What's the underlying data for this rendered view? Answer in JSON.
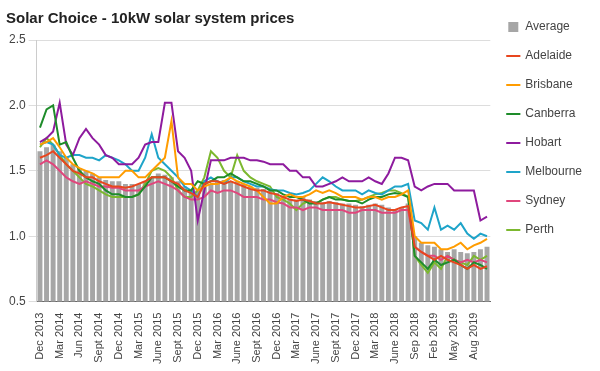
{
  "chart_data": {
    "type": "line",
    "title": "Solar Choice - 10kW solar system prices",
    "categories": [
      "Dec 2013",
      null,
      null,
      "Mar 2014",
      null,
      null,
      "Jun 2014",
      null,
      null,
      "Sept 2014",
      null,
      null,
      "Dec 2014",
      null,
      null,
      "Mar 2015",
      null,
      null,
      "June 2015",
      null,
      null,
      "Sept 2015",
      null,
      null,
      "Dec 2015",
      null,
      null,
      "Mar 2016",
      null,
      null,
      "June 2016",
      null,
      null,
      "Sept 2016",
      null,
      null,
      "Dec 2016",
      null,
      null,
      "Mar 2017",
      null,
      null,
      "June 2017",
      null,
      null,
      "Sept 2017",
      null,
      null,
      "Dec 2017",
      null,
      null,
      "Mar 2018",
      null,
      null,
      "June 2018",
      null,
      null,
      "Sep 2018",
      null,
      null,
      "Feb 2019",
      null,
      null,
      "May 2019",
      null,
      null,
      "Aug 2019",
      null,
      null
    ],
    "series": [
      {
        "name": "Average",
        "type": "bar",
        "color": "#a6a6a6",
        "values": [
          1.65,
          1.68,
          1.7,
          1.65,
          1.6,
          1.55,
          1.52,
          1.5,
          1.48,
          1.45,
          1.43,
          1.42,
          1.42,
          1.4,
          1.4,
          1.4,
          1.42,
          1.45,
          1.48,
          1.47,
          1.45,
          1.42,
          1.38,
          1.36,
          1.35,
          1.38,
          1.4,
          1.42,
          1.43,
          1.42,
          1.42,
          1.4,
          1.38,
          1.37,
          1.36,
          1.35,
          1.33,
          1.3,
          1.28,
          1.28,
          1.3,
          1.28,
          1.27,
          1.26,
          1.27,
          1.26,
          1.25,
          1.25,
          1.24,
          1.23,
          1.24,
          1.25,
          1.24,
          1.22,
          1.2,
          1.22,
          1.25,
          1.0,
          0.95,
          0.93,
          0.92,
          0.9,
          0.88,
          0.9,
          0.88,
          0.87,
          0.88,
          0.9,
          0.92
        ]
      },
      {
        "name": "Adelaide",
        "type": "line",
        "color": "#e8461e",
        "values": [
          1.6,
          1.62,
          1.65,
          1.6,
          1.55,
          1.5,
          1.48,
          1.45,
          1.45,
          1.42,
          1.4,
          1.38,
          1.38,
          1.37,
          1.38,
          1.4,
          1.42,
          1.45,
          1.45,
          1.45,
          1.42,
          1.4,
          1.35,
          1.33,
          1.3,
          1.4,
          1.42,
          1.42,
          1.4,
          1.42,
          1.4,
          1.38,
          1.36,
          1.35,
          1.35,
          1.33,
          1.32,
          1.3,
          1.28,
          1.27,
          1.28,
          1.27,
          1.25,
          1.25,
          1.26,
          1.25,
          1.24,
          1.23,
          1.22,
          1.22,
          1.23,
          1.24,
          1.22,
          1.2,
          1.2,
          1.22,
          1.23,
          0.92,
          0.88,
          0.85,
          0.82,
          0.85,
          0.82,
          0.8,
          0.78,
          0.75,
          0.78,
          0.75,
          0.77
        ]
      },
      {
        "name": "Brisbane",
        "type": "line",
        "color": "#ff9c00",
        "values": [
          1.7,
          1.72,
          1.75,
          1.68,
          1.6,
          1.55,
          1.52,
          1.5,
          1.48,
          1.45,
          1.45,
          1.45,
          1.45,
          1.5,
          1.5,
          1.45,
          1.45,
          1.5,
          1.55,
          1.6,
          1.88,
          1.45,
          1.4,
          1.4,
          1.35,
          1.38,
          1.4,
          1.4,
          1.42,
          1.45,
          1.42,
          1.4,
          1.38,
          1.35,
          1.3,
          1.25,
          1.25,
          1.3,
          1.32,
          1.3,
          1.3,
          1.32,
          1.35,
          1.33,
          1.35,
          1.33,
          1.3,
          1.3,
          1.3,
          1.28,
          1.3,
          1.3,
          1.28,
          1.3,
          1.3,
          1.32,
          1.35,
          1.0,
          0.95,
          0.95,
          0.95,
          0.9,
          0.9,
          0.92,
          0.95,
          0.9,
          0.93,
          0.95,
          0.98
        ]
      },
      {
        "name": "Canberra",
        "type": "line",
        "color": "#1e8c2a",
        "values": [
          1.83,
          1.97,
          2.0,
          1.7,
          1.72,
          1.6,
          1.5,
          1.45,
          1.42,
          1.4,
          1.35,
          1.32,
          1.32,
          1.3,
          1.3,
          1.32,
          1.38,
          1.45,
          1.45,
          1.45,
          1.42,
          1.38,
          1.35,
          1.35,
          1.42,
          1.4,
          1.42,
          1.45,
          1.45,
          1.48,
          1.45,
          1.42,
          1.42,
          1.4,
          1.38,
          1.35,
          1.35,
          1.32,
          1.3,
          1.3,
          1.28,
          1.25,
          1.25,
          1.28,
          1.3,
          1.28,
          1.28,
          1.27,
          1.27,
          1.25,
          1.28,
          1.3,
          1.3,
          1.32,
          1.33,
          1.32,
          1.3,
          0.85,
          0.8,
          0.75,
          0.82,
          0.78,
          0.8,
          0.82,
          0.78,
          0.75,
          0.8,
          0.78,
          0.75
        ]
      },
      {
        "name": "Hobart",
        "type": "line",
        "color": "#8e1b9e",
        "values": [
          1.72,
          1.75,
          1.8,
          2.02,
          1.7,
          1.62,
          1.75,
          1.82,
          1.75,
          1.7,
          1.62,
          1.6,
          1.55,
          1.55,
          1.55,
          1.6,
          1.7,
          1.72,
          1.72,
          2.02,
          2.02,
          1.65,
          1.6,
          1.5,
          1.12,
          1.35,
          1.58,
          1.58,
          1.58,
          1.6,
          1.6,
          1.6,
          1.58,
          1.58,
          1.57,
          1.55,
          1.55,
          1.55,
          1.5,
          1.5,
          1.45,
          1.45,
          1.38,
          1.38,
          1.4,
          1.42,
          1.45,
          1.42,
          1.42,
          1.42,
          1.45,
          1.42,
          1.4,
          1.48,
          1.6,
          1.6,
          1.58,
          1.38,
          1.35,
          1.38,
          1.4,
          1.4,
          1.4,
          1.35,
          1.35,
          1.35,
          1.35,
          1.12,
          1.15
        ]
      },
      {
        "name": "Melbourne",
        "type": "line",
        "color": "#1ea4c9",
        "values": [
          1.7,
          1.72,
          1.7,
          1.62,
          1.6,
          1.62,
          1.62,
          1.6,
          1.6,
          1.58,
          1.62,
          1.6,
          1.58,
          1.55,
          1.5,
          1.5,
          1.6,
          1.78,
          1.6,
          1.55,
          1.5,
          1.45,
          1.38,
          1.35,
          1.3,
          1.42,
          1.45,
          1.42,
          1.4,
          1.45,
          1.45,
          1.42,
          1.4,
          1.38,
          1.38,
          1.36,
          1.35,
          1.35,
          1.33,
          1.32,
          1.33,
          1.35,
          1.4,
          1.45,
          1.42,
          1.38,
          1.35,
          1.35,
          1.35,
          1.32,
          1.35,
          1.33,
          1.32,
          1.35,
          1.38,
          1.38,
          1.4,
          1.12,
          1.1,
          1.05,
          1.22,
          1.05,
          1.08,
          1.05,
          1.1,
          1.02,
          0.98,
          1.02,
          1.0
        ]
      },
      {
        "name": "Sydney",
        "type": "line",
        "color": "#e0467c",
        "values": [
          1.55,
          1.58,
          1.55,
          1.5,
          1.45,
          1.42,
          1.4,
          1.42,
          1.4,
          1.38,
          1.38,
          1.37,
          1.37,
          1.35,
          1.35,
          1.35,
          1.38,
          1.4,
          1.42,
          1.4,
          1.38,
          1.35,
          1.3,
          1.28,
          1.28,
          1.3,
          1.35,
          1.33,
          1.35,
          1.35,
          1.33,
          1.3,
          1.3,
          1.3,
          1.28,
          1.28,
          1.26,
          1.25,
          1.22,
          1.22,
          1.2,
          1.22,
          1.22,
          1.2,
          1.2,
          1.2,
          1.2,
          1.18,
          1.18,
          1.2,
          1.2,
          1.2,
          1.18,
          1.18,
          1.18,
          1.2,
          1.2,
          0.92,
          0.88,
          0.85,
          0.85,
          0.82,
          0.85,
          0.82,
          0.8,
          0.82,
          0.8,
          0.82,
          0.8
        ]
      },
      {
        "name": "Perth",
        "type": "line",
        "color": "#7cb82f",
        "values": [
          1.68,
          1.75,
          1.7,
          1.62,
          1.55,
          1.5,
          1.45,
          1.4,
          1.38,
          1.35,
          1.32,
          1.3,
          1.3,
          1.3,
          1.3,
          1.32,
          1.4,
          1.5,
          1.52,
          1.5,
          1.45,
          1.35,
          1.3,
          1.3,
          1.35,
          1.45,
          1.65,
          1.6,
          1.5,
          1.45,
          1.62,
          1.5,
          1.45,
          1.42,
          1.4,
          1.38,
          1.3,
          1.28,
          1.25,
          1.2,
          1.25,
          1.27,
          1.25,
          1.28,
          1.3,
          1.3,
          1.28,
          1.27,
          1.27,
          1.28,
          1.3,
          1.32,
          1.33,
          1.35,
          1.35,
          1.33,
          1.3,
          0.85,
          0.78,
          0.72,
          0.8,
          0.75,
          0.85,
          0.82,
          0.8,
          0.78,
          0.85,
          0.82,
          0.85
        ]
      }
    ],
    "ylim": [
      0.5,
      2.5
    ],
    "yticks": [
      0.5,
      {
        "value": 1.0,
        "label": "1.0"
      },
      1.5,
      {
        "value": 2.0,
        "label": "2.0"
      },
      2.5
    ],
    "grid": true,
    "legend": "right"
  }
}
